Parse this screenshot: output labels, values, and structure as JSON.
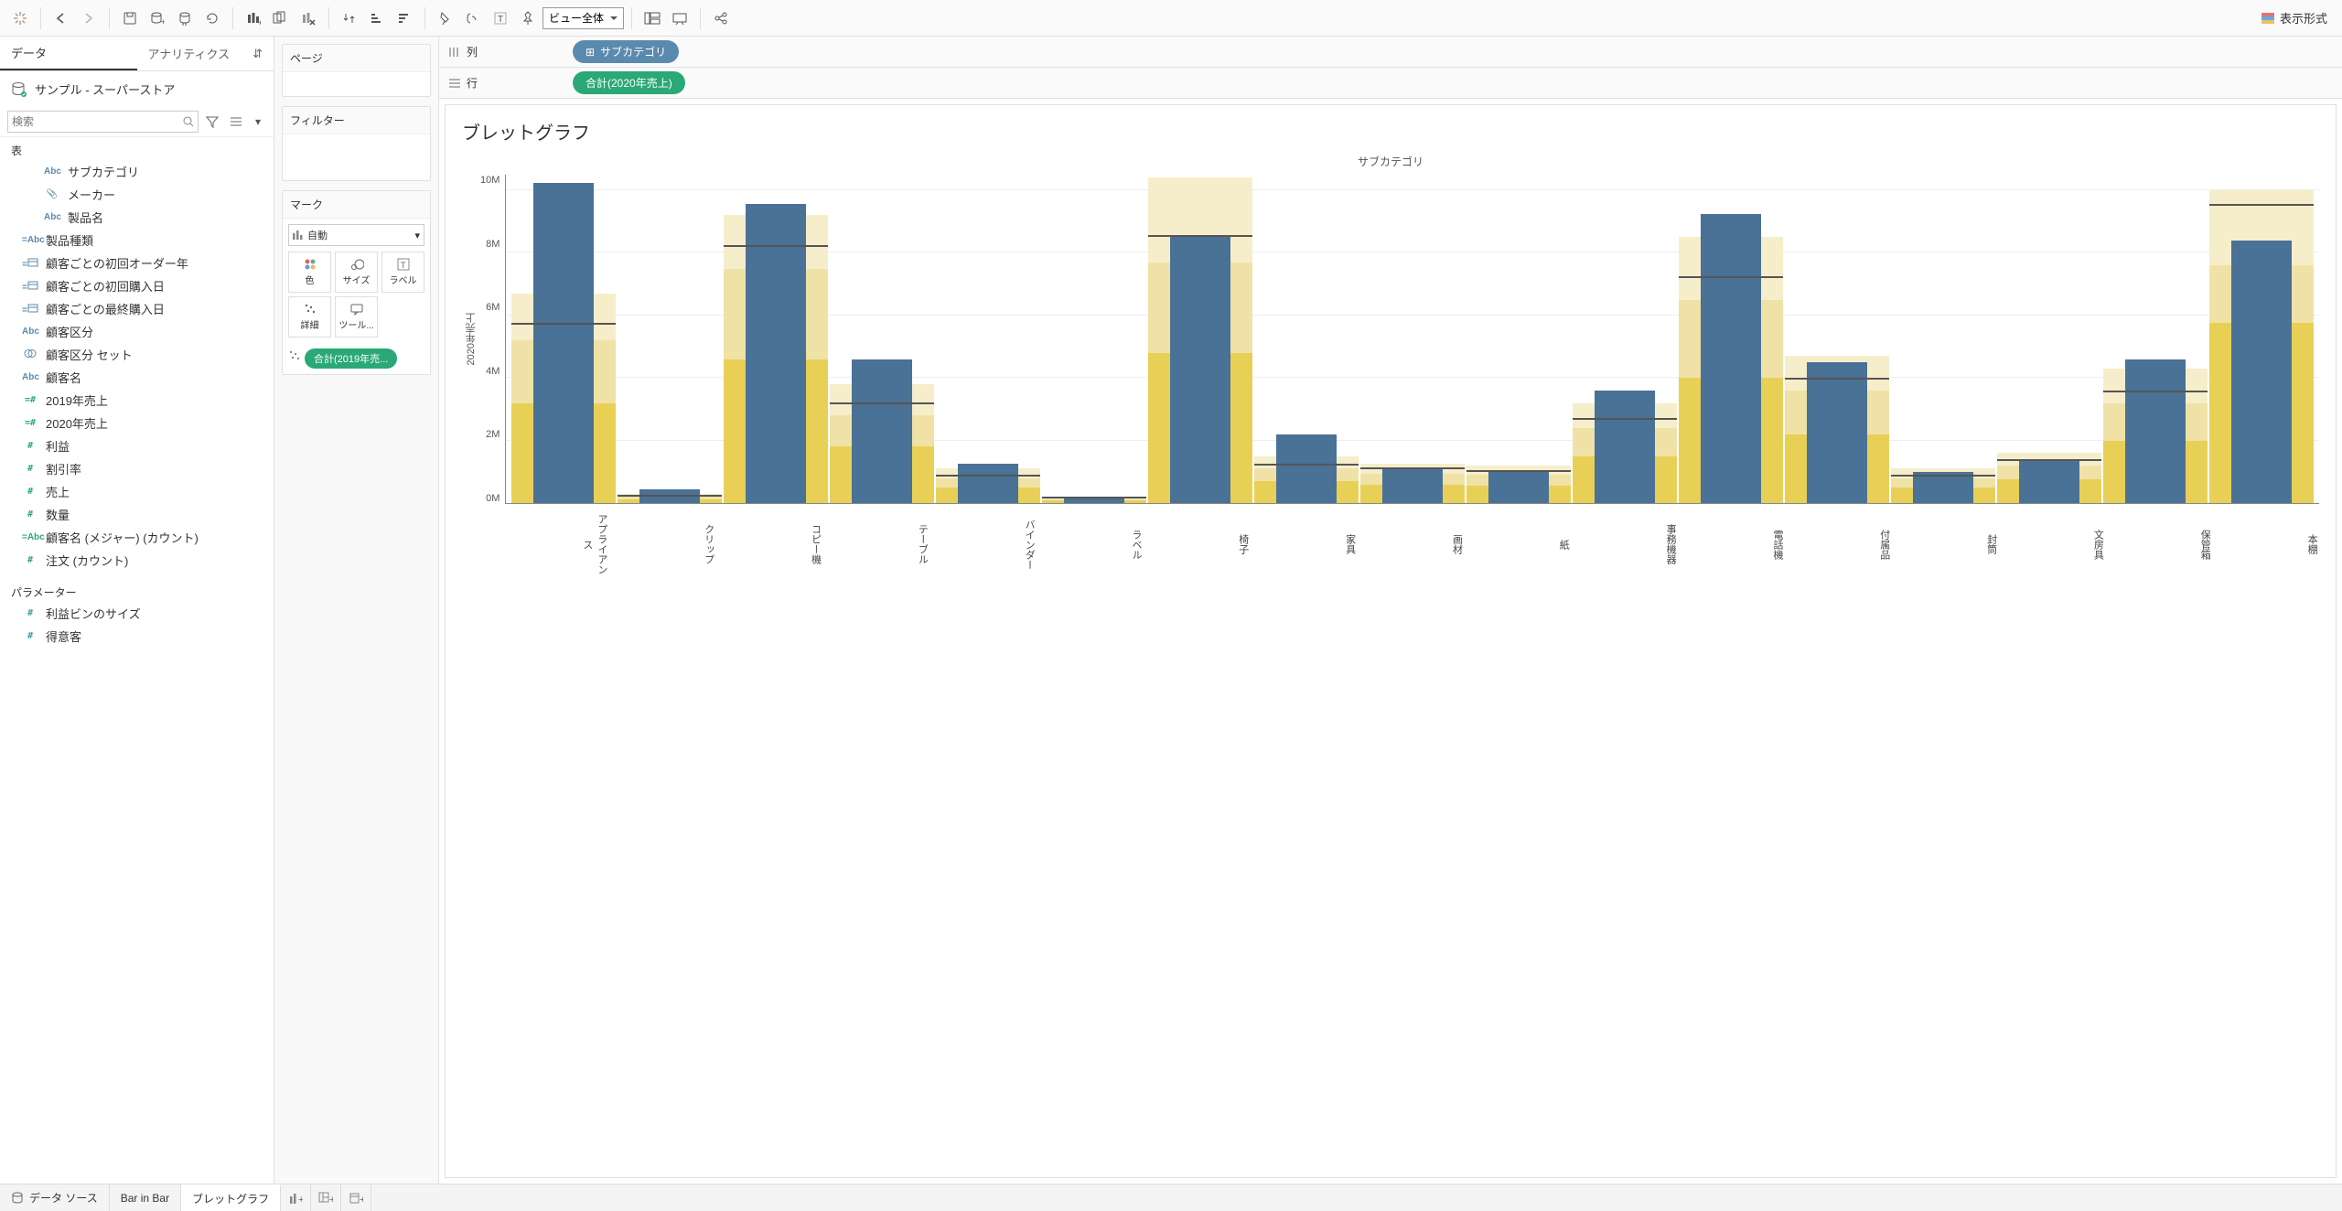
{
  "toolbar": {
    "view_fit_label": "ビュー全体",
    "show_me_label": "表示形式"
  },
  "sidebar": {
    "tabs": {
      "data": "データ",
      "analytics": "アナリティクス"
    },
    "datasource": "サンプル - スーパーストア",
    "search_placeholder": "検索",
    "sections": {
      "tables": "表",
      "parameters": "パラメーター"
    },
    "fields": [
      {
        "icon": "Abc",
        "label": "サブカテゴリ",
        "color": "blue",
        "indent": 1
      },
      {
        "icon": "clip",
        "label": "メーカー",
        "color": "grey",
        "indent": 1
      },
      {
        "icon": "Abc",
        "label": "製品名",
        "color": "blue",
        "indent": 1
      },
      {
        "icon": "=Abc",
        "label": "製品種類",
        "color": "blue",
        "indent": 0
      },
      {
        "icon": "date",
        "label": "顧客ごとの初回オーダー年",
        "color": "blue",
        "indent": 0,
        "calc": true
      },
      {
        "icon": "date",
        "label": "顧客ごとの初回購入日",
        "color": "blue",
        "indent": 0,
        "calc": true
      },
      {
        "icon": "date",
        "label": "顧客ごとの最終購入日",
        "color": "blue",
        "indent": 0,
        "calc": true
      },
      {
        "icon": "Abc",
        "label": "顧客区分",
        "color": "blue",
        "indent": 0
      },
      {
        "icon": "set",
        "label": "顧客区分 セット",
        "color": "blue",
        "indent": 0
      },
      {
        "icon": "Abc",
        "label": "顧客名",
        "color": "blue",
        "indent": 0
      },
      {
        "icon": "#",
        "label": "2019年売上",
        "color": "green",
        "indent": 0,
        "calc": true
      },
      {
        "icon": "#",
        "label": "2020年売上",
        "color": "green",
        "indent": 0,
        "calc": true
      },
      {
        "icon": "#",
        "label": "利益",
        "color": "green",
        "indent": 0
      },
      {
        "icon": "#",
        "label": "割引率",
        "color": "green",
        "indent": 0
      },
      {
        "icon": "#",
        "label": "売上",
        "color": "green",
        "indent": 0
      },
      {
        "icon": "#",
        "label": "数量",
        "color": "green",
        "indent": 0
      },
      {
        "icon": "=Abc",
        "label": "顧客名 (メジャー) (カウント)",
        "color": "green",
        "indent": 0
      },
      {
        "icon": "#",
        "label": "注文 (カウント)",
        "color": "green",
        "indent": 0
      }
    ],
    "parameters": [
      {
        "icon": "#",
        "label": "利益ビンのサイズ",
        "color": "teal"
      },
      {
        "icon": "#",
        "label": "得意客",
        "color": "teal"
      }
    ]
  },
  "cards": {
    "pages": "ページ",
    "filters": "フィルター",
    "marks": "マーク",
    "mark_type": "自動",
    "cells": {
      "color": "色",
      "size": "サイズ",
      "label": "ラベル",
      "detail": "詳細",
      "tooltip": "ツール..."
    },
    "mark_pill": "合計(2019年売..."
  },
  "shelves": {
    "columns_label": "列",
    "rows_label": "行",
    "columns_pill": "サブカテゴリ",
    "rows_pill": "合計(2020年売上)"
  },
  "chart": {
    "title": "ブレットグラフ",
    "top_axis_label": "サブカテゴリ",
    "y_axis_label": "2020年売上",
    "ymax": 10500000,
    "yticks": [
      {
        "v": 0,
        "label": "0M"
      },
      {
        "v": 2000000,
        "label": "2M"
      },
      {
        "v": 4000000,
        "label": "4M"
      },
      {
        "v": 6000000,
        "label": "6M"
      },
      {
        "v": 8000000,
        "label": "8M"
      },
      {
        "v": 10000000,
        "label": "10M"
      }
    ],
    "bar_color": "#4a7196",
    "band60_color": "#f6eecb",
    "band80_color": "#f0e2a6",
    "bandavg_color": "#e8d057",
    "refline_color": "#555555",
    "categories": [
      {
        "label": "アプライアンス",
        "value": 10250000,
        "ref": 5700000,
        "p50": 3200000,
        "p60": 5200000,
        "p80": 6700000
      },
      {
        "label": "クリップ",
        "value": 450000,
        "ref": 200000,
        "p50": 120000,
        "p60": 200000,
        "p80": 300000
      },
      {
        "label": "コピー機",
        "value": 9550000,
        "ref": 8200000,
        "p50": 4600000,
        "p60": 7500000,
        "p80": 9200000
      },
      {
        "label": "テーブル",
        "value": 4600000,
        "ref": 3150000,
        "p50": 1800000,
        "p60": 2800000,
        "p80": 3800000
      },
      {
        "label": "バインダー",
        "value": 1250000,
        "ref": 850000,
        "p50": 500000,
        "p60": 800000,
        "p80": 1100000
      },
      {
        "label": "ラベル",
        "value": 200000,
        "ref": 150000,
        "p50": 80000,
        "p60": 130000,
        "p80": 180000
      },
      {
        "label": "椅子",
        "value": 8550000,
        "ref": 8500000,
        "p50": 4800000,
        "p60": 7700000,
        "p80": 10400000
      },
      {
        "label": "家具",
        "value": 2200000,
        "ref": 1200000,
        "p50": 700000,
        "p60": 1100000,
        "p80": 1500000
      },
      {
        "label": "画材",
        "value": 1100000,
        "ref": 1080000,
        "p50": 600000,
        "p60": 950000,
        "p80": 1250000
      },
      {
        "label": "紙",
        "value": 1020000,
        "ref": 1000000,
        "p50": 550000,
        "p60": 900000,
        "p80": 1200000
      },
      {
        "label": "事務機器",
        "value": 3600000,
        "ref": 2650000,
        "p50": 1500000,
        "p60": 2400000,
        "p80": 3200000
      },
      {
        "label": "電話機",
        "value": 9250000,
        "ref": 7200000,
        "p50": 4000000,
        "p60": 6500000,
        "p80": 8500000
      },
      {
        "label": "付属品",
        "value": 4500000,
        "ref": 3950000,
        "p50": 2200000,
        "p60": 3600000,
        "p80": 4700000
      },
      {
        "label": "封筒",
        "value": 1000000,
        "ref": 850000,
        "p50": 500000,
        "p60": 800000,
        "p80": 1100000
      },
      {
        "label": "文房具",
        "value": 1400000,
        "ref": 1350000,
        "p50": 750000,
        "p60": 1200000,
        "p80": 1600000
      },
      {
        "label": "保管箱",
        "value": 4600000,
        "ref": 3550000,
        "p50": 2000000,
        "p60": 3200000,
        "p80": 4300000
      },
      {
        "label": "本棚",
        "value": 8400000,
        "ref": 9500000,
        "p50": 5750000,
        "p60": 7600000,
        "p80": 10000000
      }
    ]
  },
  "bottom": {
    "datasource": "データ ソース",
    "tabs": [
      "Bar in Bar",
      "ブレットグラフ"
    ],
    "active": 1
  }
}
